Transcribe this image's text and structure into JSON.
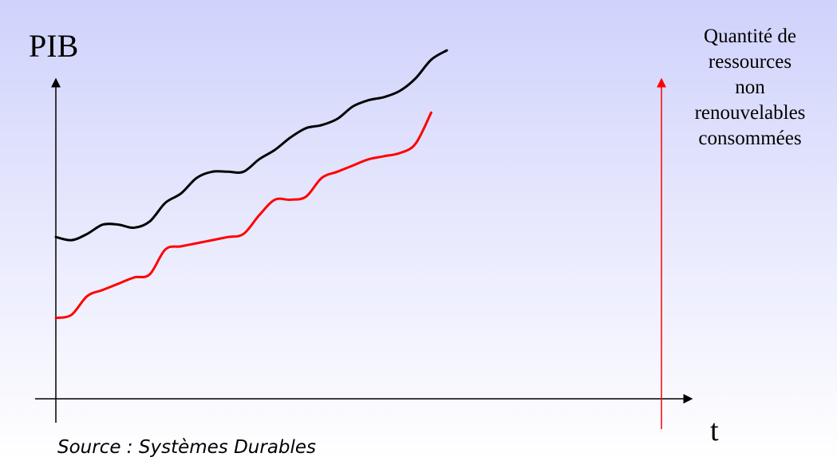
{
  "chart_data": {
    "type": "line",
    "ylabel_left": "PIB",
    "ylabel_right": "Quantité de\nressources\nnon\nrenouvelables\nconsommées",
    "xlabel": "t",
    "source": "Source : Systèmes Durables",
    "grid": false,
    "colors": {
      "left_axis": "#000000",
      "right_axis": "#ff0000"
    },
    "series": [
      {
        "color": "#000000",
        "axis": "left",
        "x": [
          0,
          4,
          8,
          12,
          16,
          20,
          24,
          28,
          32,
          36,
          40,
          44,
          48,
          52,
          56,
          60,
          64,
          68,
          72,
          76,
          80,
          84,
          88,
          92,
          96,
          100
        ],
        "values": [
          52,
          51,
          53,
          56,
          56,
          55,
          57,
          63,
          66,
          71,
          73,
          73,
          73,
          77,
          80,
          84,
          87,
          88,
          90,
          94,
          96,
          97,
          99,
          103,
          109,
          112
        ]
      },
      {
        "color": "#ff0000",
        "axis": "right",
        "x": [
          0,
          4,
          8,
          12,
          16,
          20,
          24,
          28,
          32,
          36,
          40,
          44,
          48,
          52,
          56,
          60,
          64,
          68,
          72,
          76,
          80,
          84,
          88,
          92,
          96
        ],
        "values": [
          26,
          27,
          33,
          35,
          37,
          39,
          40,
          48,
          49,
          50,
          51,
          52,
          53,
          59,
          64,
          64,
          65,
          71,
          73,
          75,
          77,
          78,
          79,
          82,
          92
        ]
      }
    ]
  }
}
